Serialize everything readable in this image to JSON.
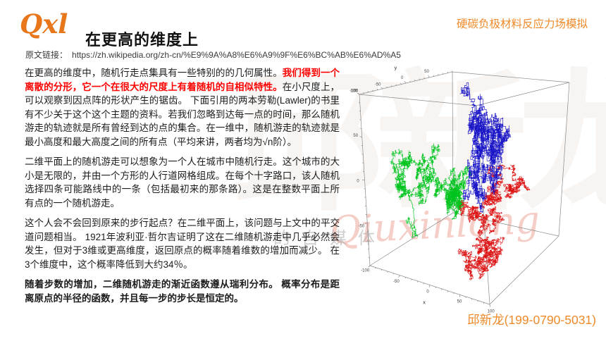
{
  "page": {
    "logo": "Qxl",
    "title": "在更高的维度上",
    "topic": "硬碳负极材料反应力场模拟",
    "source_label": "原文链接：",
    "source_url": "https://zh.wikipedia.org/zh-cn/%E9%9A%A8%E6%A9%9F%E6%BC%AB%E6%AD%A5",
    "contact": "邱新龙(199-0790-5031)",
    "accent_color": "#ee8a2a",
    "emphasis_color": "#fe0000"
  },
  "watermark": {
    "big": "邱新龙",
    "script": "Qiuxinlong",
    "small": "的自媒体"
  },
  "paragraphs": {
    "p1a": "在更高的维度中，随机行走点集具有一些特别的的几何属性。",
    "p1red": "我们得到一个离散的分形，它一个在很大的尺度上有着随机的自相似特性。",
    "p1b": "在小尺度上，可以观察到因点阵的形状产生的锯齿。 下面引用的两本劳勒(Lawler)的书里有不少关于这个这个主题的资料。若我们忽略到达每一点的时间，那么随机游走的轨迹就是所有曾经到达的点的集合。在一维中，随机游走的轨迹就是最小高度和最大高度之间的所有点（平均来讲，两者均为√n阶）。",
    "p2": "二维平面上的随机游走可以想象为一个人在城市中随机行走。这个城市的大小是无限的，并由一个方形的人行道网格组成。在每个十字路口，该人随机选择四条可能路线中的一条（包括最初来的那条路）。这是在整数平面上所有点的一个随机游走。",
    "p3": "这个人会不会回到原来的步行起点？在二维平面上，该问题与上文中的平交道问题相当。 1921年波利亚·哲尔吉证明了这在二维随机游走中几乎必然会发生，但对于3维或更高维度，返回原点的概率随着维数的增加而减少。 在3个维度中，这个概率降低到大约34％。",
    "p4": "随着步数的增加，二维随机游走的渐近函数遵从瑞利分布。 概率分布是距离原点的半径的函数，并且每一步的步长是恒定的。"
  },
  "chart_data": {
    "type": "line",
    "title": "",
    "description": "Three 3D lattice random walks (blue, green, red) starting near the origin, drawn inside a wireframe cube with perspective axes",
    "grid": false,
    "legend": "none",
    "axes": {
      "x": {
        "label": "x",
        "range": [
          -100,
          100
        ],
        "ticks": [
          -50,
          0,
          50,
          100
        ]
      },
      "y": {
        "label": "y",
        "range": [
          -100,
          100
        ],
        "ticks": [
          -100,
          -50,
          0,
          50
        ]
      },
      "z": {
        "label": "",
        "range": [
          -100,
          100
        ],
        "ticks": [
          100,
          50,
          0,
          -50,
          -100
        ]
      }
    },
    "minor_tick_step": 10,
    "box_color": "#8a8a8a",
    "series": [
      {
        "name": "walk-green",
        "color": "#00c41e",
        "seed": 23,
        "steps": 6000,
        "extent": {
          "x": [
            -95,
            15
          ],
          "y": [
            -90,
            15
          ],
          "z": [
            -62,
            35
          ]
        }
      },
      {
        "name": "walk-red",
        "color": "#dd1212",
        "seed": 5,
        "steps": 6000,
        "extent": {
          "x": [
            0,
            85
          ],
          "y": [
            -90,
            70
          ],
          "z": [
            -98,
            0
          ]
        }
      },
      {
        "name": "walk-blue",
        "color": "#1a16c8",
        "seed": 11,
        "steps": 6000,
        "extent": {
          "x": [
            -65,
            40
          ],
          "y": [
            -10,
            95
          ],
          "z": [
            -45,
            92
          ]
        }
      }
    ]
  }
}
